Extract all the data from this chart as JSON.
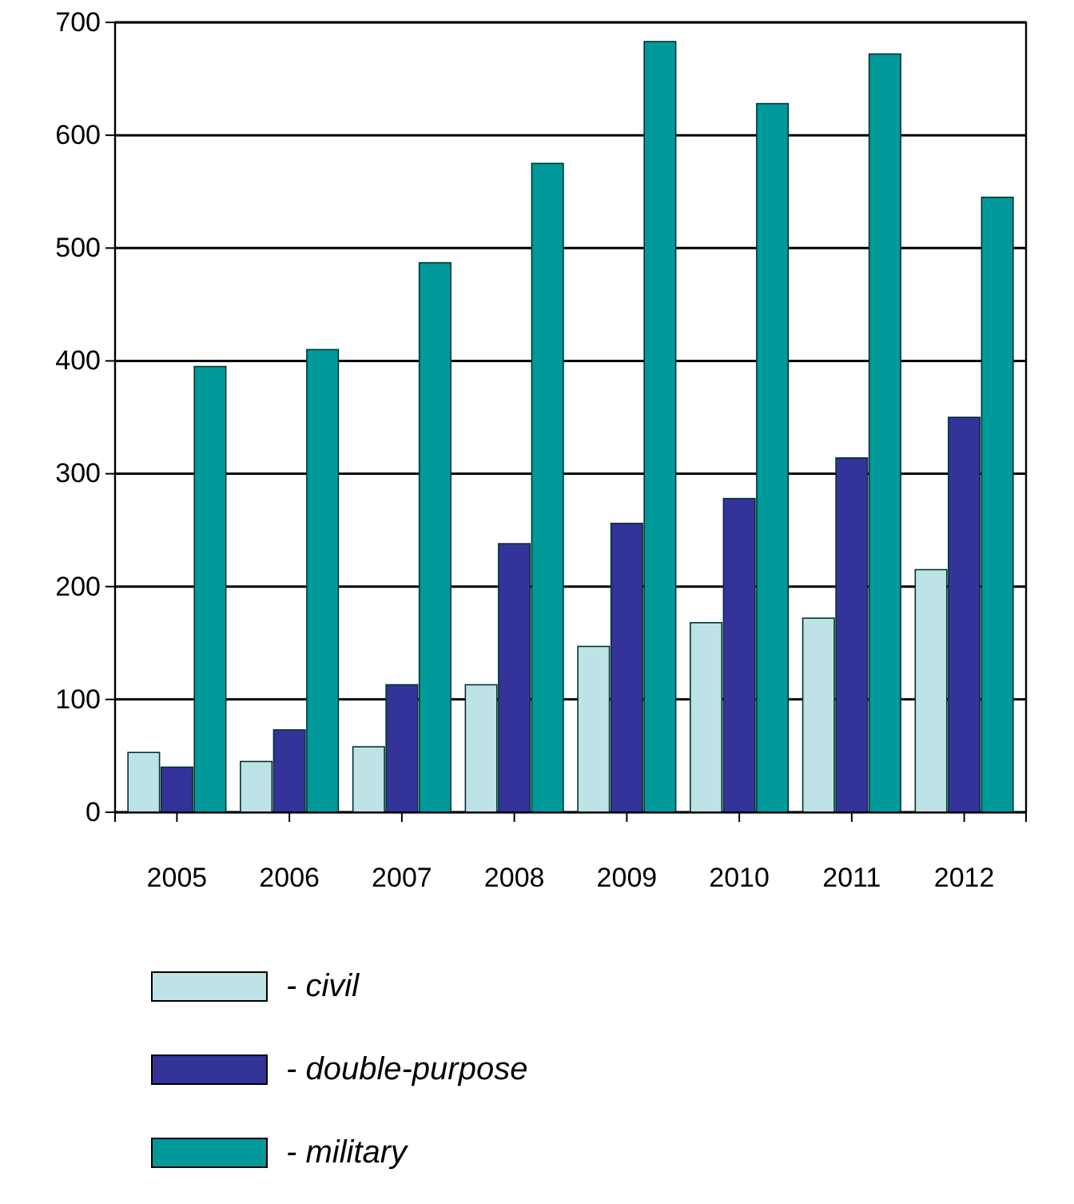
{
  "chart_data": {
    "type": "bar",
    "categories": [
      "2005",
      "2006",
      "2007",
      "2008",
      "2009",
      "2010",
      "2011",
      "2012"
    ],
    "series": [
      {
        "name": "- civil",
        "color": "#bde3e6",
        "values": [
          53,
          45,
          58,
          113,
          147,
          168,
          172,
          215
        ]
      },
      {
        "name": "- double-purpose",
        "color": "#333399",
        "values": [
          40,
          73,
          113,
          238,
          256,
          278,
          314,
          350
        ]
      },
      {
        "name": "- military",
        "color": "#009999",
        "values": [
          395,
          410,
          487,
          575,
          683,
          628,
          672,
          545
        ]
      }
    ],
    "ylim": [
      0,
      700
    ],
    "yticks": [
      0,
      100,
      200,
      300,
      400,
      500,
      600,
      700
    ],
    "grid": "y",
    "legend": "bottom"
  }
}
